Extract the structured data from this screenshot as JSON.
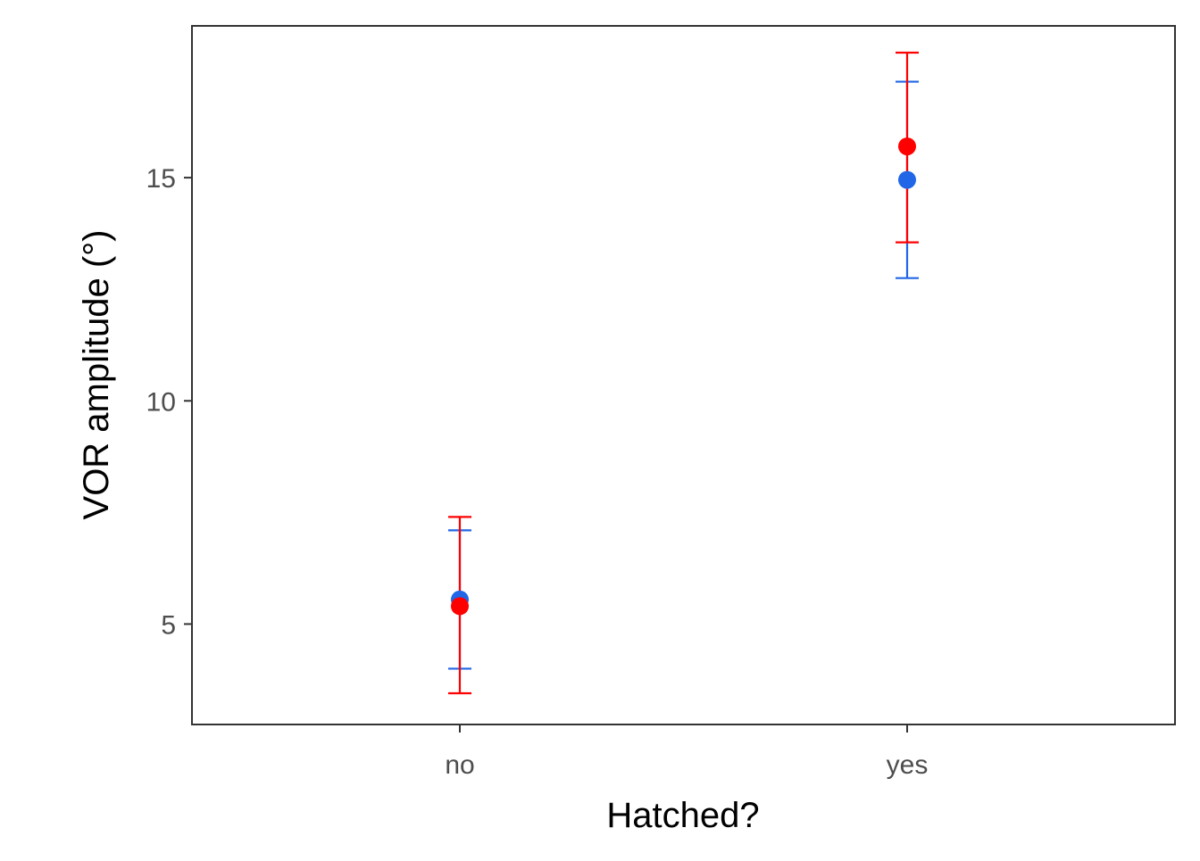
{
  "chart_data": {
    "type": "scatter",
    "title": "",
    "xlabel": "Hatched?",
    "ylabel": "VOR amplitude (°)",
    "categories": [
      "no",
      "yes"
    ],
    "ylim": [
      2.75,
      18.4
    ],
    "yticks": [
      5,
      10,
      15
    ],
    "ytick_labels": [
      "5",
      "10",
      "15"
    ],
    "grid": false,
    "legend": "none",
    "series": [
      {
        "color": "#2166e6",
        "values": [
          5.55,
          14.95
        ],
        "error_low": [
          4.0,
          12.75
        ],
        "error_high": [
          7.1,
          17.15
        ]
      },
      {
        "color": "#ff0000",
        "values": [
          5.4,
          15.7
        ],
        "error_low": [
          3.45,
          13.55
        ],
        "error_high": [
          7.4,
          17.8
        ]
      }
    ]
  }
}
